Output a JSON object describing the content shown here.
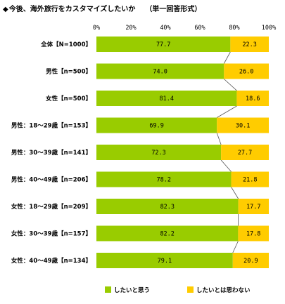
{
  "title": {
    "marker": "◆",
    "main": "今後、海外旅行をカスタマイズしたいか",
    "note": "（単一回答形式）"
  },
  "colors": {
    "want": "#99CC00",
    "not_want": "#FFCC00",
    "connector": "#555555"
  },
  "chart_data": {
    "type": "bar",
    "orientation": "horizontal",
    "stacked": true,
    "percent_axis": true,
    "xlim": [
      0,
      100
    ],
    "xticks": [
      "0%",
      "20%",
      "40%",
      "60%",
      "80%",
      "100%"
    ],
    "categories": [
      "全体【N=1000】",
      "男性【n=500】",
      "女性【n=500】",
      "男性：18～29歳【n=153】",
      "男性：30～39歳【n=141】",
      "男性：40～49歳【n=206】",
      "女性：18～29歳【n=209】",
      "女性：30～39歳【n=157】",
      "女性：40～49歳【n=134】"
    ],
    "series": [
      {
        "name": "したいと思う",
        "values": [
          77.7,
          74.0,
          81.4,
          69.9,
          72.3,
          78.2,
          82.3,
          82.2,
          79.1
        ],
        "labels": [
          "77.7",
          "74.0",
          "81.4",
          "69.9",
          "72.3",
          "78.2",
          "82.3",
          "82.2",
          "79.1"
        ]
      },
      {
        "name": "したいとは思わない",
        "values": [
          22.3,
          26.0,
          18.6,
          30.1,
          27.7,
          21.8,
          17.7,
          17.8,
          20.9
        ],
        "labels": [
          "22.3",
          "26.0",
          "18.6",
          "30.1",
          "27.7",
          "21.8",
          "17.7",
          "17.8",
          "20.9"
        ]
      }
    ],
    "legend_position": "bottom",
    "grid": false,
    "series_connectors": true
  }
}
